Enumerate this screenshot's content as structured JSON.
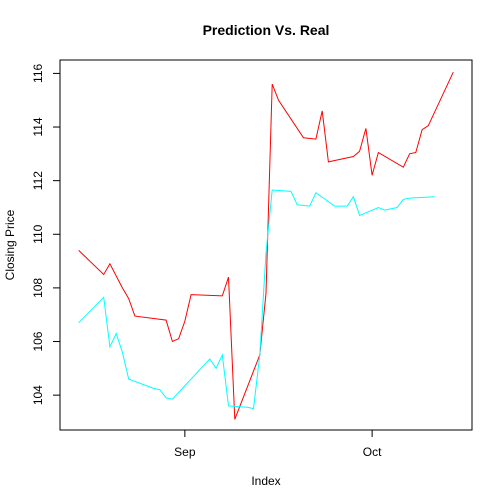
{
  "chart_data": {
    "type": "line",
    "title": "Prediction Vs. Real",
    "xlabel": "Index",
    "ylabel": "Closing Price",
    "xlim": [
      "2016-08-12",
      "2016-10-17"
    ],
    "ylim": [
      102.7,
      116.5
    ],
    "x_ticks": [
      {
        "value": "2016-09-01",
        "label": "Sep"
      },
      {
        "value": "2016-10-01",
        "label": "Oct"
      }
    ],
    "y_ticks": [
      104,
      106,
      108,
      110,
      112,
      114,
      116
    ],
    "grid": false,
    "legend": "none",
    "series": [
      {
        "color": "#ff0000",
        "points": [
          [
            "2016-08-15",
            109.4
          ],
          [
            "2016-08-19",
            108.5
          ],
          [
            "2016-08-20",
            108.9
          ],
          [
            "2016-08-22",
            108.0
          ],
          [
            "2016-08-23",
            107.6
          ],
          [
            "2016-08-24",
            106.95
          ],
          [
            "2016-08-29",
            106.8
          ],
          [
            "2016-08-30",
            106.0
          ],
          [
            "2016-08-31",
            106.1
          ],
          [
            "2016-09-01",
            106.75
          ],
          [
            "2016-09-02",
            107.75
          ],
          [
            "2016-09-07",
            107.7
          ],
          [
            "2016-09-08",
            108.4
          ],
          [
            "2016-09-09",
            103.1
          ],
          [
            "2016-09-13",
            105.5
          ],
          [
            "2016-09-14",
            107.8
          ],
          [
            "2016-09-15",
            115.6
          ],
          [
            "2016-09-16",
            115.0
          ],
          [
            "2016-09-20",
            113.6
          ],
          [
            "2016-09-22",
            113.55
          ],
          [
            "2016-09-23",
            114.6
          ],
          [
            "2016-09-24",
            112.7
          ],
          [
            "2016-09-28",
            112.9
          ],
          [
            "2016-09-29",
            113.1
          ],
          [
            "2016-09-30",
            113.95
          ],
          [
            "2016-10-01",
            112.2
          ],
          [
            "2016-10-02",
            113.05
          ],
          [
            "2016-10-06",
            112.5
          ],
          [
            "2016-10-07",
            113.0
          ],
          [
            "2016-10-08",
            113.05
          ],
          [
            "2016-10-09",
            113.9
          ],
          [
            "2016-10-10",
            114.05
          ],
          [
            "2016-10-14",
            116.05
          ]
        ]
      },
      {
        "color": "#00ffff",
        "points": [
          [
            "2016-08-15",
            106.7
          ],
          [
            "2016-08-19",
            107.65
          ],
          [
            "2016-08-20",
            105.8
          ],
          [
            "2016-08-21",
            106.3
          ],
          [
            "2016-08-22",
            105.6
          ],
          [
            "2016-08-23",
            104.6
          ],
          [
            "2016-08-27",
            104.25
          ],
          [
            "2016-08-28",
            104.2
          ],
          [
            "2016-08-29",
            103.9
          ],
          [
            "2016-08-30",
            103.85
          ],
          [
            "2016-09-05",
            105.35
          ],
          [
            "2016-09-06",
            105.0
          ],
          [
            "2016-09-07",
            105.5
          ],
          [
            "2016-09-08",
            103.6
          ],
          [
            "2016-09-11",
            103.55
          ],
          [
            "2016-09-12",
            103.5
          ],
          [
            "2016-09-13",
            105.5
          ],
          [
            "2016-09-14",
            109.3
          ],
          [
            "2016-09-15",
            111.65
          ],
          [
            "2016-09-18",
            111.6
          ],
          [
            "2016-09-19",
            111.1
          ],
          [
            "2016-09-21",
            111.05
          ],
          [
            "2016-09-22",
            111.55
          ],
          [
            "2016-09-25",
            111.05
          ],
          [
            "2016-09-27",
            111.05
          ],
          [
            "2016-09-28",
            111.4
          ],
          [
            "2016-09-29",
            110.7
          ],
          [
            "2016-10-02",
            111.0
          ],
          [
            "2016-10-03",
            110.9
          ],
          [
            "2016-10-05",
            111.0
          ],
          [
            "2016-10-06",
            111.3
          ],
          [
            "2016-10-07",
            111.35
          ],
          [
            "2016-10-11",
            111.4
          ]
        ]
      }
    ]
  }
}
